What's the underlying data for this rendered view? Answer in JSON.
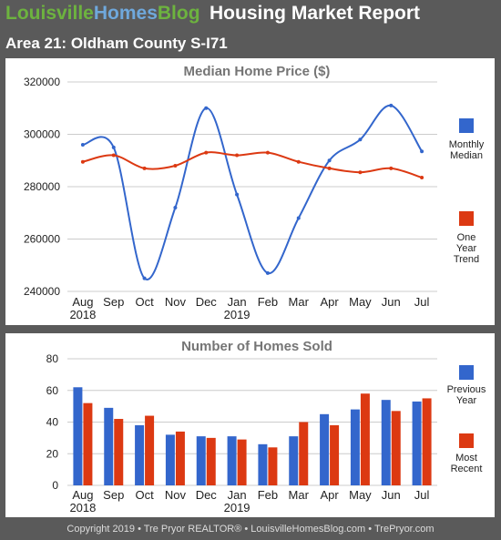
{
  "header": {
    "brand_part1": "Louisville",
    "brand_part2": "Homes",
    "brand_part3": "Blog",
    "report_title": "Housing Market Report",
    "area_title": "Area 21: Oldham County S-I71"
  },
  "footer": {
    "text": "Copyright 2019 • Tre Pryor REALTOR® • LouisvilleHomesBlog.com • TrePryor.com"
  },
  "colors": {
    "blue": "#3366cc",
    "red": "#dc3912",
    "grid": "#cccccc",
    "text": "#222222",
    "title": "#757575"
  },
  "chart_data": [
    {
      "type": "line",
      "title": "Median Home Price ($)",
      "categories": [
        "Aug",
        "Sep",
        "Oct",
        "Nov",
        "Dec",
        "Jan",
        "Feb",
        "Mar",
        "Apr",
        "May",
        "Jun",
        "Jul"
      ],
      "year_labels": [
        "2018",
        "",
        "",
        "",
        "",
        "2019",
        "",
        "",
        "",
        "",
        "",
        ""
      ],
      "ylim": [
        240000,
        320000
      ],
      "yticks": [
        "320000",
        "300000",
        "280000",
        "260000",
        "240000"
      ],
      "ytick_values": [
        320000,
        300000,
        280000,
        260000,
        240000
      ],
      "grid": true,
      "legend_placement": "right",
      "series": [
        {
          "name": "Monthly Median",
          "legend_lines": [
            "Monthly",
            "Median"
          ],
          "color": "#3366cc",
          "values": [
            296000,
            295000,
            245000,
            272000,
            310000,
            277000,
            247000,
            268000,
            290000,
            298000,
            311000,
            293500
          ]
        },
        {
          "name": "One Year Trend",
          "legend_lines": [
            "One",
            "Year",
            "Trend"
          ],
          "color": "#dc3912",
          "values": [
            289500,
            292000,
            287000,
            288000,
            293000,
            292000,
            293000,
            289500,
            287000,
            285500,
            287000,
            283500
          ]
        }
      ]
    },
    {
      "type": "bar",
      "title": "Number of Homes Sold",
      "categories": [
        "Aug",
        "Sep",
        "Oct",
        "Nov",
        "Dec",
        "Jan",
        "Feb",
        "Mar",
        "Apr",
        "May",
        "Jun",
        "Jul"
      ],
      "year_labels": [
        "2018",
        "",
        "",
        "",
        "",
        "2019",
        "",
        "",
        "",
        "",
        "",
        ""
      ],
      "ylim": [
        0,
        80
      ],
      "yticks": [
        "80",
        "60",
        "40",
        "20",
        "0"
      ],
      "ytick_values": [
        80,
        60,
        40,
        20,
        0
      ],
      "grid": true,
      "legend_placement": "right",
      "series": [
        {
          "name": "Previous Year",
          "legend_lines": [
            "Previous",
            "Year"
          ],
          "color": "#3366cc",
          "values": [
            62,
            49,
            38,
            32,
            31,
            31,
            26,
            31,
            45,
            48,
            54,
            53
          ]
        },
        {
          "name": "Most Recent",
          "legend_lines": [
            "Most",
            "Recent"
          ],
          "color": "#dc3912",
          "values": [
            52,
            42,
            44,
            34,
            30,
            29,
            24,
            40,
            38,
            58,
            47,
            55
          ]
        }
      ]
    }
  ]
}
